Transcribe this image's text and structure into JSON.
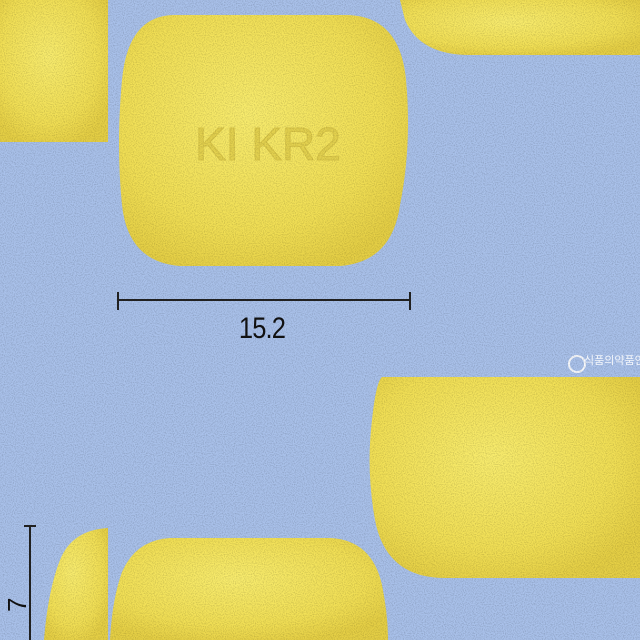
{
  "image": {
    "background_color": "#a9c1ea",
    "pill_color": "#f3e35a",
    "imprint_text": "KI KR2",
    "measurement_width": "15.2",
    "measurement_side": "7",
    "watermark_text": "식품의약품안전처"
  }
}
